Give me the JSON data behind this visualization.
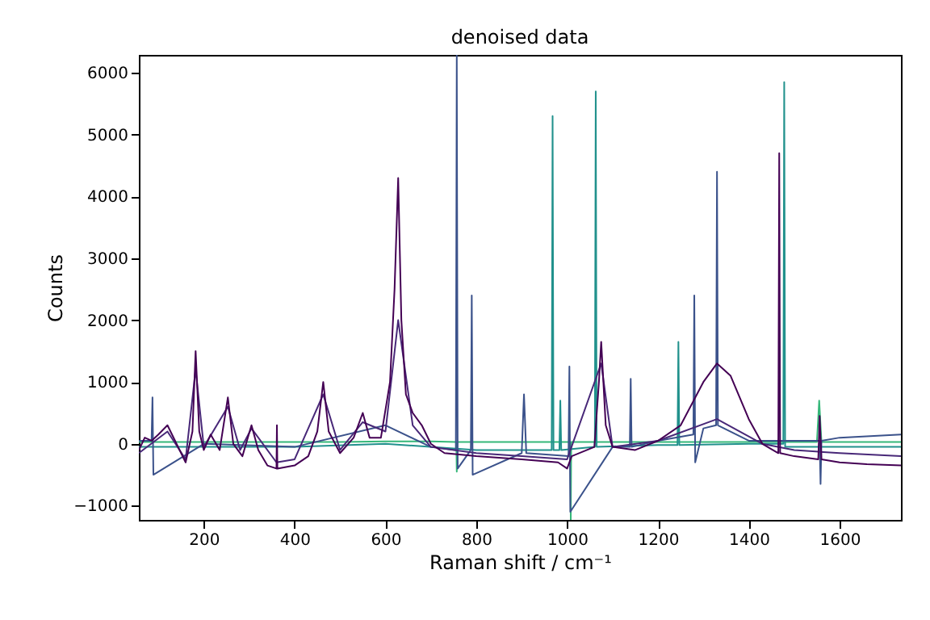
{
  "chart_data": {
    "type": "line",
    "title": "denoised data",
    "xlabel": "Raman shift / cm⁻¹",
    "ylabel": "Counts",
    "xlim": [
      57,
      1735
    ],
    "ylim": [
      -1230,
      6290
    ],
    "xticks": [
      200,
      400,
      600,
      800,
      1000,
      1200,
      1400,
      1600
    ],
    "yticks": [
      -1000,
      0,
      1000,
      2000,
      3000,
      4000,
      5000,
      6000
    ],
    "grid": false,
    "series": [
      {
        "color": "#35b779",
        "x": [
          57,
          100,
          200,
          300,
          400,
          500,
          600,
          700,
          756,
          757,
          758,
          800,
          900,
          1000,
          1007,
          1008,
          1009,
          1100,
          1200,
          1300,
          1400,
          1500,
          1550,
          1555,
          1560,
          1600,
          1735
        ],
        "values": [
          30,
          30,
          30,
          30,
          30,
          30,
          40,
          40,
          30,
          -450,
          30,
          30,
          30,
          30,
          30,
          -1230,
          30,
          30,
          30,
          30,
          30,
          30,
          30,
          700,
          30,
          30,
          30
        ]
      },
      {
        "color": "#21918c",
        "x": [
          57,
          200,
          400,
          600,
          800,
          966,
          968,
          970,
          983,
          985,
          987,
          1061,
          1063,
          1065,
          1200,
          1243,
          1245,
          1247,
          1400,
          1476,
          1478,
          1480,
          1600,
          1735
        ],
        "values": [
          -50,
          -50,
          -50,
          0,
          -100,
          -100,
          5300,
          -100,
          -100,
          700,
          -100,
          -50,
          5700,
          -50,
          -20,
          -20,
          1650,
          -20,
          0,
          0,
          5850,
          -50,
          -50,
          -50
        ]
      },
      {
        "color": "#3b528b",
        "x": [
          57,
          85,
          87,
          89,
          200,
          400,
          600,
          700,
          755,
          757,
          759,
          788,
          790,
          792,
          900,
          905,
          910,
          1003,
          1005,
          1007,
          1100,
          1138,
          1140,
          1142,
          1200,
          1278,
          1280,
          1282,
          1300,
          1328,
          1330,
          1332,
          1400,
          1500,
          1556,
          1558,
          1560,
          1600,
          1735
        ],
        "values": [
          50,
          50,
          750,
          -500,
          0,
          -50,
          300,
          -50,
          -100,
          6290,
          -400,
          -100,
          2400,
          -500,
          -150,
          800,
          -150,
          -200,
          1250,
          -1100,
          -50,
          -50,
          1050,
          -50,
          50,
          150,
          2400,
          -300,
          250,
          300,
          4400,
          300,
          50,
          50,
          50,
          -650,
          50,
          100,
          150
        ]
      },
      {
        "color": "#482878",
        "x": [
          57,
          120,
          160,
          182,
          200,
          253,
          280,
          305,
          360,
          400,
          463,
          500,
          550,
          600,
          628,
          660,
          700,
          800,
          900,
          1000,
          1075,
          1100,
          1200,
          1330,
          1430,
          1500,
          1600,
          1735
        ],
        "values": [
          -150,
          200,
          -250,
          1200,
          -50,
          600,
          -100,
          250,
          -300,
          -250,
          800,
          -100,
          350,
          200,
          2000,
          300,
          -50,
          -150,
          -200,
          -250,
          1300,
          -50,
          50,
          400,
          0,
          -100,
          -150,
          -200
        ]
      },
      {
        "color": "#440154",
        "x": [
          57,
          70,
          85,
          100,
          120,
          140,
          160,
          175,
          182,
          190,
          200,
          215,
          235,
          253,
          265,
          285,
          305,
          320,
          340,
          360,
          361,
          362,
          400,
          430,
          450,
          463,
          475,
          500,
          530,
          550,
          565,
          590,
          610,
          620,
          628,
          635,
          645,
          660,
          680,
          700,
          730,
          800,
          900,
          980,
          1000,
          1010,
          1060,
          1070,
          1075,
          1085,
          1100,
          1150,
          1200,
          1250,
          1300,
          1330,
          1360,
          1400,
          1430,
          1465,
          1467,
          1469,
          1500,
          1553,
          1556,
          1560,
          1600,
          1660,
          1735
        ],
        "values": [
          -100,
          100,
          50,
          150,
          300,
          0,
          -300,
          200,
          1500,
          200,
          -100,
          150,
          -100,
          750,
          0,
          -200,
          300,
          -100,
          -350,
          -400,
          300,
          -400,
          -350,
          -200,
          200,
          1000,
          200,
          -150,
          100,
          500,
          100,
          100,
          1000,
          2500,
          4300,
          2000,
          800,
          500,
          300,
          0,
          -150,
          -200,
          -250,
          -300,
          -400,
          -200,
          -50,
          1000,
          1650,
          300,
          -50,
          -100,
          50,
          300,
          1000,
          1300,
          1100,
          400,
          0,
          -150,
          4700,
          -150,
          -200,
          -250,
          450,
          -250,
          -300,
          -330,
          -350
        ]
      }
    ]
  }
}
